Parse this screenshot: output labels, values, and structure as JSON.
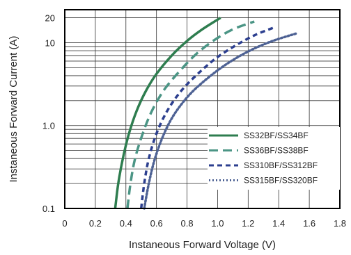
{
  "chart_data": {
    "type": "line",
    "title": "",
    "xlabel": "Instaneous Forward Voltage (V)",
    "ylabel": "Instaneous Forward Current (A)",
    "x_scale": "linear",
    "y_scale": "log",
    "xlim": [
      0,
      1.8
    ],
    "ylim": [
      0.1,
      25
    ],
    "x_ticks": [
      0,
      0.2,
      0.4,
      0.6,
      0.8,
      1.0,
      1.2,
      1.4,
      1.6,
      1.8
    ],
    "x_tick_labels": [
      "0",
      "0.2",
      "0.4",
      "0.6",
      "0.8",
      "1.0",
      "1.2",
      "1.4",
      "1.6",
      "1.8"
    ],
    "y_ticks": [
      0.1,
      1.0,
      10,
      20
    ],
    "y_tick_labels": [
      "0.1",
      "1.0",
      "10",
      "20"
    ],
    "grid": true,
    "legend_position": "bottom-right",
    "colors": {
      "solid_green": "#2e7d4f",
      "dashed_teal": "#4b9585",
      "dashed_navy": "#2c3f8f",
      "dotted_slate": "#4e6294"
    },
    "series": [
      {
        "name": "SS32BF/SS34BF",
        "style": "solid",
        "color": "#2e7d4f",
        "x": [
          0.33,
          0.35,
          0.38,
          0.42,
          0.47,
          0.53,
          0.6,
          0.7,
          0.8,
          0.9,
          1.02
        ],
        "y": [
          0.1,
          0.2,
          0.4,
          0.8,
          1.5,
          2.6,
          4.2,
          7,
          10.5,
          14.5,
          20
        ]
      },
      {
        "name": "SS36BF/SS38BF",
        "style": "dashed",
        "color": "#4b9585",
        "x": [
          0.41,
          0.43,
          0.46,
          0.51,
          0.57,
          0.65,
          0.75,
          0.86,
          0.98,
          1.1,
          1.24
        ],
        "y": [
          0.1,
          0.2,
          0.4,
          0.8,
          1.5,
          2.7,
          4.5,
          7.3,
          10.8,
          14.5,
          18
        ]
      },
      {
        "name": "SS310BF/SS312BF",
        "style": "dashed",
        "color": "#2c3f8f",
        "x": [
          0.5,
          0.52,
          0.55,
          0.6,
          0.67,
          0.76,
          0.87,
          0.99,
          1.12,
          1.25,
          1.38
        ],
        "y": [
          0.1,
          0.2,
          0.4,
          0.8,
          1.5,
          2.6,
          4.2,
          6.5,
          9.3,
          12.5,
          15.5
        ]
      },
      {
        "name": "SS315BF/SS320BF",
        "style": "dotted",
        "color": "#4e6294",
        "x": [
          0.52,
          0.55,
          0.59,
          0.65,
          0.72,
          0.82,
          0.94,
          1.07,
          1.21,
          1.36,
          1.52
        ],
        "y": [
          0.1,
          0.2,
          0.4,
          0.8,
          1.4,
          2.4,
          3.8,
          5.7,
          8,
          10.5,
          13
        ]
      }
    ]
  }
}
